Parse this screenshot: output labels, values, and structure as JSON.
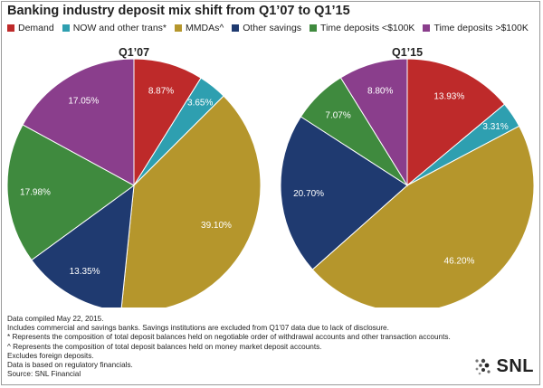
{
  "title": "Banking industry deposit mix shift from Q1’07 to Q1’15",
  "legend": [
    {
      "label": "Demand",
      "color": "#be2a2a"
    },
    {
      "label": "NOW and other trans*",
      "color": "#2e9fb0"
    },
    {
      "label": "MMDAs^",
      "color": "#b5962c"
    },
    {
      "label": "Other savings",
      "color": "#1f3a70"
    },
    {
      "label": "Time deposits <$100K",
      "color": "#3f8a3e"
    },
    {
      "label": "Time deposits >$100K",
      "color": "#8a3e8c"
    }
  ],
  "chart_data": [
    {
      "type": "pie",
      "title": "Q1’07",
      "categories": [
        "Demand",
        "NOW and other trans*",
        "MMDAs^",
        "Other savings",
        "Time deposits <$100K",
        "Time deposits >$100K"
      ],
      "values": [
        8.87,
        3.65,
        39.1,
        13.35,
        17.98,
        17.05
      ],
      "value_labels": [
        "8.87%",
        "3.65%",
        "39.10%",
        "13.35%",
        "17.98%",
        "17.05%"
      ]
    },
    {
      "type": "pie",
      "title": "Q1’15",
      "categories": [
        "Demand",
        "NOW and other trans*",
        "MMDAs^",
        "Other savings",
        "Time deposits <$100K",
        "Time deposits >$100K"
      ],
      "values": [
        13.93,
        3.31,
        46.2,
        20.7,
        7.07,
        8.8
      ],
      "value_labels": [
        "13.93%",
        "3.31%",
        "46.20%",
        "20.70%",
        "7.07%",
        "8.80%"
      ]
    }
  ],
  "notes": [
    "Data compiled May 22, 2015.",
    "Includes commercial and savings banks. Savings institutions are excluded from Q1’07 data due to lack of disclosure.",
    "* Represents the composition of total deposit balances held on negotiable order of withdrawal accounts and other transaction accounts.",
    "^ Represents the composition of total deposit balances held on money market deposit accounts.",
    "Excludes foreign deposits.",
    "Data is based on regulatory financials.",
    "Source: SNL Financial"
  ],
  "logo": {
    "text": "SNL",
    "icon": "snl-dots-logo-icon"
  }
}
